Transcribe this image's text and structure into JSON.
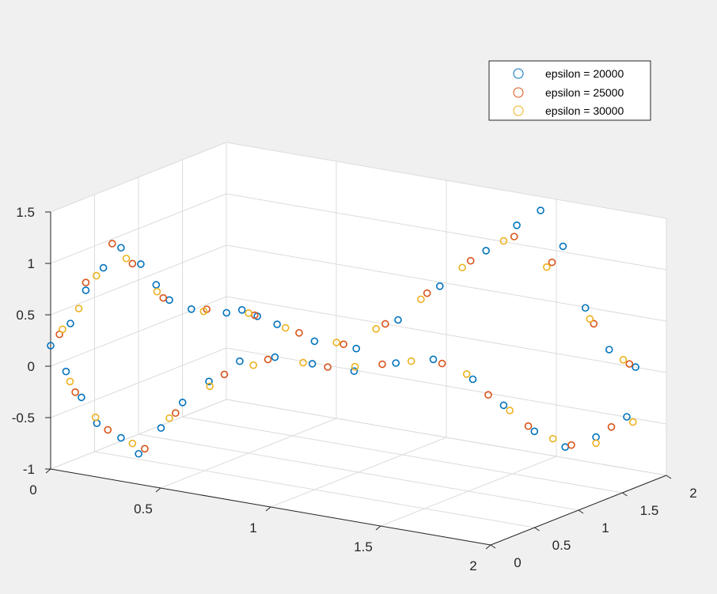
{
  "chart_data": {
    "type": "scatter",
    "title": "",
    "xlabel": "",
    "ylabel": "",
    "zlabel": "",
    "xlim": [
      0,
      2
    ],
    "ylim": [
      0,
      2
    ],
    "zlim": [
      -1,
      1.5
    ],
    "x_ticks": [
      "0",
      "0.5",
      "1",
      "1.5",
      "2"
    ],
    "y_ticks": [
      "0",
      "0.5",
      "1",
      "1.5",
      "2"
    ],
    "z_ticks": [
      "-1",
      "-0.5",
      "0",
      "0.5",
      "1",
      "1.5"
    ],
    "x_tick_values": [
      0,
      0.5,
      1,
      1.5,
      2
    ],
    "y_tick_values": [
      0,
      0.5,
      1,
      1.5,
      2
    ],
    "z_tick_values": [
      -1,
      -0.5,
      0,
      0.5,
      1,
      1.5
    ],
    "grid": true,
    "legend_position": "top-right",
    "series": [
      {
        "name": "epsilon = 20000",
        "color": "#0072BD",
        "marker": "circle",
        "points": [
          [
            0.0,
            0.0,
            0.2
          ],
          [
            0.05,
            0.1,
            0.4
          ],
          [
            0.08,
            0.2,
            0.7
          ],
          [
            0.12,
            0.3,
            0.9
          ],
          [
            0.18,
            0.35,
            1.1
          ],
          [
            0.25,
            0.4,
            0.95
          ],
          [
            0.3,
            0.45,
            0.75
          ],
          [
            0.34,
            0.5,
            0.6
          ],
          [
            0.4,
            0.6,
            0.5
          ],
          [
            0.5,
            0.75,
            0.45
          ],
          [
            0.55,
            0.8,
            0.48
          ],
          [
            0.6,
            0.85,
            0.42
          ],
          [
            0.67,
            0.9,
            0.35
          ],
          [
            0.8,
            1.0,
            0.2
          ],
          [
            0.95,
            1.1,
            0.15
          ],
          [
            1.1,
            1.2,
            0.45
          ],
          [
            1.25,
            1.3,
            0.8
          ],
          [
            1.4,
            1.45,
            1.15
          ],
          [
            1.5,
            1.55,
            1.4
          ],
          [
            1.58,
            1.62,
            1.55
          ],
          [
            1.65,
            1.7,
            1.2
          ],
          [
            1.72,
            1.78,
            0.6
          ],
          [
            1.8,
            1.85,
            0.2
          ],
          [
            1.9,
            1.9,
            0.05
          ],
          [
            0.05,
            0.05,
            -0.05
          ],
          [
            0.1,
            0.1,
            -0.3
          ],
          [
            0.15,
            0.15,
            -0.55
          ],
          [
            0.22,
            0.25,
            -0.7
          ],
          [
            0.28,
            0.3,
            -0.85
          ],
          [
            0.35,
            0.38,
            -0.6
          ],
          [
            0.42,
            0.45,
            -0.35
          ],
          [
            0.5,
            0.55,
            -0.15
          ],
          [
            0.6,
            0.65,
            0.05
          ],
          [
            0.72,
            0.75,
            0.1
          ],
          [
            0.85,
            0.85,
            0.05
          ],
          [
            1.0,
            0.95,
            0.0
          ],
          [
            1.15,
            1.05,
            0.1
          ],
          [
            1.28,
            1.15,
            0.15
          ],
          [
            1.4,
            1.3,
            -0.05
          ],
          [
            1.5,
            1.4,
            -0.3
          ],
          [
            1.6,
            1.5,
            -0.55
          ],
          [
            1.7,
            1.6,
            -0.7
          ],
          [
            1.8,
            1.7,
            -0.6
          ],
          [
            1.9,
            1.8,
            -0.4
          ]
        ]
      },
      {
        "name": "epsilon = 25000",
        "color": "#D95319",
        "marker": "circle",
        "points": [
          [
            0.02,
            0.05,
            0.3
          ],
          [
            0.1,
            0.15,
            0.8
          ],
          [
            0.16,
            0.3,
            1.15
          ],
          [
            0.22,
            0.38,
            0.95
          ],
          [
            0.32,
            0.48,
            0.62
          ],
          [
            0.45,
            0.65,
            0.5
          ],
          [
            0.6,
            0.82,
            0.44
          ],
          [
            0.75,
            0.95,
            0.28
          ],
          [
            0.9,
            1.08,
            0.18
          ],
          [
            1.05,
            1.18,
            0.4
          ],
          [
            1.2,
            1.28,
            0.72
          ],
          [
            1.35,
            1.4,
            1.05
          ],
          [
            1.5,
            1.52,
            1.3
          ],
          [
            1.62,
            1.65,
            1.05
          ],
          [
            1.75,
            1.8,
            0.45
          ],
          [
            1.88,
            1.88,
            0.08
          ],
          [
            0.08,
            0.08,
            -0.25
          ],
          [
            0.18,
            0.2,
            -0.62
          ],
          [
            0.3,
            0.32,
            -0.8
          ],
          [
            0.4,
            0.42,
            -0.45
          ],
          [
            0.55,
            0.6,
            -0.08
          ],
          [
            0.7,
            0.72,
            0.08
          ],
          [
            0.9,
            0.9,
            0.02
          ],
          [
            1.1,
            1.02,
            0.08
          ],
          [
            1.3,
            1.2,
            0.1
          ],
          [
            1.45,
            1.35,
            -0.2
          ],
          [
            1.58,
            1.48,
            -0.5
          ],
          [
            1.72,
            1.62,
            -0.68
          ],
          [
            1.85,
            1.75,
            -0.5
          ]
        ]
      },
      {
        "name": "epsilon = 30000",
        "color": "#EDB120",
        "marker": "circle",
        "points": [
          [
            0.03,
            0.06,
            0.35
          ],
          [
            0.08,
            0.12,
            0.55
          ],
          [
            0.12,
            0.22,
            0.85
          ],
          [
            0.2,
            0.36,
            1.0
          ],
          [
            0.3,
            0.46,
            0.68
          ],
          [
            0.44,
            0.64,
            0.48
          ],
          [
            0.58,
            0.8,
            0.46
          ],
          [
            0.7,
            0.92,
            0.32
          ],
          [
            0.88,
            1.05,
            0.2
          ],
          [
            1.02,
            1.15,
            0.35
          ],
          [
            1.18,
            1.26,
            0.66
          ],
          [
            1.32,
            1.38,
            0.98
          ],
          [
            1.46,
            1.5,
            1.25
          ],
          [
            1.6,
            1.64,
            1.0
          ],
          [
            1.74,
            1.78,
            0.5
          ],
          [
            1.86,
            1.86,
            0.12
          ],
          [
            0.06,
            0.07,
            -0.15
          ],
          [
            0.14,
            0.16,
            -0.5
          ],
          [
            0.26,
            0.28,
            -0.75
          ],
          [
            0.38,
            0.4,
            -0.5
          ],
          [
            0.5,
            0.56,
            -0.2
          ],
          [
            0.65,
            0.68,
            0.02
          ],
          [
            0.82,
            0.82,
            0.06
          ],
          [
            1.0,
            0.96,
            0.04
          ],
          [
            1.2,
            1.1,
            0.12
          ],
          [
            1.38,
            1.28,
            0.0
          ],
          [
            1.52,
            1.42,
            -0.35
          ],
          [
            1.66,
            1.56,
            -0.62
          ],
          [
            1.8,
            1.7,
            -0.66
          ],
          [
            1.92,
            1.82,
            -0.45
          ]
        ]
      }
    ]
  }
}
